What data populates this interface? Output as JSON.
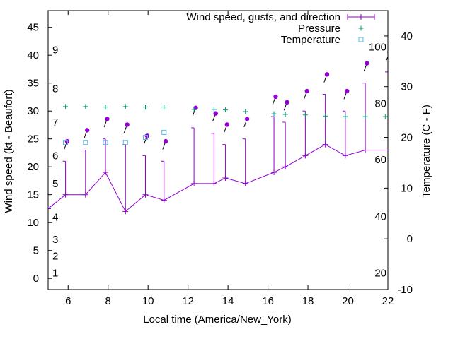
{
  "chart_data": {
    "type": "line",
    "xlabel": "Local time (America/New_York)",
    "ylabel": "Wind speed (kt - Beaufort)",
    "y2label": "Temperature (C - F)",
    "xlim": [
      5,
      22
    ],
    "ylim": [
      -2,
      48
    ],
    "y2lim": [
      -10,
      45
    ],
    "x_ticks": [
      6,
      8,
      10,
      12,
      14,
      16,
      18,
      20,
      22
    ],
    "y_ticks": [
      0,
      5,
      10,
      15,
      20,
      25,
      30,
      35,
      40,
      45
    ],
    "y2_ticks": [
      -10,
      0,
      10,
      20,
      30,
      40
    ],
    "beaufort_labels": [
      {
        "label": "1",
        "kt": 1
      },
      {
        "label": "2",
        "kt": 4
      },
      {
        "label": "3",
        "kt": 7
      },
      {
        "label": "4",
        "kt": 11
      },
      {
        "label": "5",
        "kt": 17
      },
      {
        "label": "6",
        "kt": 22
      },
      {
        "label": "7",
        "kt": 28
      },
      {
        "label": "8",
        "kt": 34
      },
      {
        "label": "9",
        "kt": 41
      }
    ],
    "fahrenheit_labels": [
      {
        "label": "20",
        "c": -6.7
      },
      {
        "label": "40",
        "c": 4.4
      },
      {
        "label": "60",
        "c": 15.6
      },
      {
        "label": "80",
        "c": 26.7
      },
      {
        "label": "100",
        "c": 37.8
      }
    ],
    "legend_position": "top-right",
    "series": [
      {
        "name": "Wind speed, gusts, and direction",
        "color": "#9400d3",
        "x": [
          5,
          5.87,
          6.87,
          7.87,
          8.87,
          9.87,
          10.8,
          12.3,
          13.3,
          13.87,
          14.87,
          16.3,
          16.87,
          17.87,
          18.87,
          19.87,
          20.87,
          22
        ],
        "y": [
          12.5,
          15,
          15,
          19,
          12,
          15,
          14,
          17,
          17,
          18,
          17,
          19,
          20,
          22,
          24,
          22,
          23,
          23
        ],
        "gusts": [
          null,
          21,
          23,
          25,
          24,
          22,
          21,
          27,
          26,
          24,
          25,
          29,
          28,
          30,
          33,
          30,
          35,
          37
        ],
        "direction_deg": [
          null,
          200,
          200,
          200,
          200,
          200,
          200,
          200,
          200,
          200,
          200,
          200,
          200,
          200,
          200,
          200,
          200,
          200
        ]
      },
      {
        "name": "Pressure",
        "color": "#009e73",
        "x": [
          5.87,
          6.87,
          7.87,
          8.87,
          9.87,
          10.8,
          12.3,
          13.3,
          13.87,
          14.87,
          16.3,
          16.87,
          17.87,
          18.87,
          19.87,
          20.87,
          21.87
        ],
        "y": [
          30.8,
          30.8,
          30.7,
          30.8,
          30.7,
          30.7,
          30.3,
          30.3,
          30.2,
          29.9,
          29.5,
          29.4,
          29.3,
          29.1,
          29.0,
          29.0,
          29.0
        ]
      },
      {
        "name": "Temperature",
        "color": "#56b4e9",
        "x": [
          5.87,
          6.87,
          7.87,
          8.87,
          9.87,
          10.8
        ],
        "y": [
          19,
          19,
          19,
          19,
          20,
          21
        ]
      }
    ]
  }
}
